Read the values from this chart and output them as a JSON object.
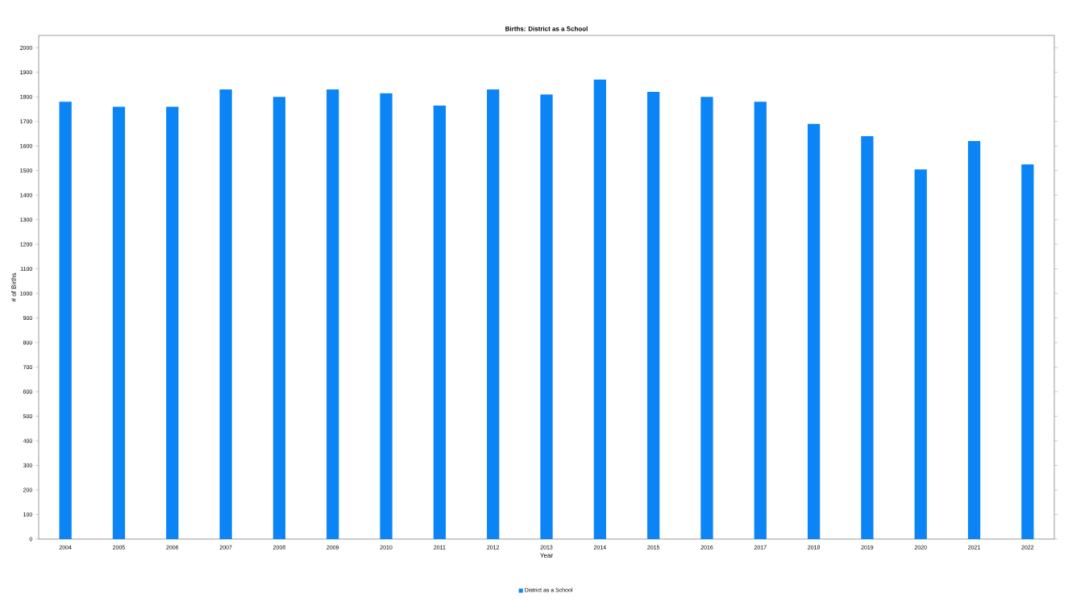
{
  "chart_data": {
    "type": "bar",
    "title": "Births: District as a School",
    "xlabel": "Year",
    "ylabel": "# of Births",
    "categories": [
      "2004",
      "2005",
      "2006",
      "2007",
      "2008",
      "2009",
      "2010",
      "2011",
      "2012",
      "2013",
      "2014",
      "2015",
      "2016",
      "2017",
      "2018",
      "2019",
      "2020",
      "2021",
      "2022"
    ],
    "series": [
      {
        "name": "District as a School",
        "color": "#0b84f5",
        "values": [
          1780,
          1760,
          1760,
          1830,
          1800,
          1830,
          1815,
          1765,
          1830,
          1810,
          1870,
          1820,
          1800,
          1780,
          1690,
          1640,
          1505,
          1620,
          1525
        ]
      }
    ],
    "ylim": [
      0,
      2050
    ],
    "yticks": [
      0,
      100,
      200,
      300,
      400,
      500,
      600,
      700,
      800,
      900,
      1000,
      1100,
      1200,
      1300,
      1400,
      1500,
      1600,
      1700,
      1800,
      1900,
      2000
    ],
    "grid": false,
    "legend": "bottom"
  }
}
